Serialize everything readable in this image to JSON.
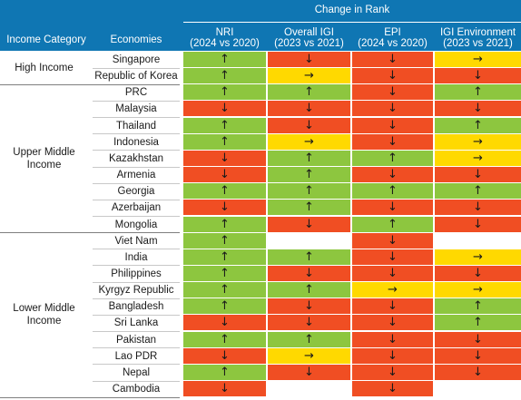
{
  "header": {
    "group_label": "Change in Rank",
    "col_category": "Income Category",
    "col_economies": "Economies",
    "metrics": [
      {
        "name": "NRI",
        "period": "(2024 vs 2020)"
      },
      {
        "name": "Overall IGI",
        "period": "(2023 vs 2021)"
      },
      {
        "name": "EPI",
        "period": "(2024 vs 2020)"
      },
      {
        "name": "IGI Environment",
        "period": "(2023 vs 2021)"
      }
    ]
  },
  "colors": {
    "header_bg": "#0f76b3",
    "improved": "#8dc63f",
    "declined": "#f04e23",
    "unchanged": "#ffd900",
    "no_data": "#ffffff"
  },
  "legend_symbols": {
    "up": "↑",
    "down": "↓",
    "same": "→"
  },
  "groups": [
    {
      "category": "High Income",
      "rows": [
        {
          "economy": "Singapore",
          "values": [
            "up",
            "down",
            "down",
            "same"
          ]
        },
        {
          "economy": "Republic of Korea",
          "values": [
            "up",
            "same",
            "down",
            "down"
          ]
        }
      ]
    },
    {
      "category": "Upper Middle Income",
      "rows": [
        {
          "economy": "PRC",
          "values": [
            "up",
            "up",
            "down",
            "up"
          ]
        },
        {
          "economy": "Malaysia",
          "values": [
            "down",
            "down",
            "down",
            "down"
          ]
        },
        {
          "economy": "Thailand",
          "values": [
            "up",
            "down",
            "down",
            "up"
          ]
        },
        {
          "economy": "Indonesia",
          "values": [
            "up",
            "same",
            "down",
            "same"
          ]
        },
        {
          "economy": "Kazakhstan",
          "values": [
            "down",
            "up",
            "up",
            "same"
          ]
        },
        {
          "economy": "Armenia",
          "values": [
            "down",
            "up",
            "down",
            "down"
          ]
        },
        {
          "economy": "Georgia",
          "values": [
            "up",
            "up",
            "up",
            "up"
          ]
        },
        {
          "economy": "Azerbaijan",
          "values": [
            "down",
            "up",
            "down",
            "down"
          ]
        },
        {
          "economy": "Mongolia",
          "values": [
            "up",
            "down",
            "up",
            "down"
          ]
        }
      ]
    },
    {
      "category": "Lower Middle Income",
      "rows": [
        {
          "economy": "Viet Nam",
          "values": [
            "up",
            null,
            "down",
            null
          ]
        },
        {
          "economy": "India",
          "values": [
            "up",
            "up",
            "down",
            "same"
          ]
        },
        {
          "economy": "Philippines",
          "values": [
            "up",
            "down",
            "down",
            "down"
          ]
        },
        {
          "economy": "Kyrgyz Republic",
          "values": [
            "up",
            "up",
            "same",
            "same"
          ]
        },
        {
          "economy": "Bangladesh",
          "values": [
            "up",
            "down",
            "down",
            "up"
          ]
        },
        {
          "economy": "Sri Lanka",
          "values": [
            "down",
            "down",
            "down",
            "up"
          ]
        },
        {
          "economy": "Pakistan",
          "values": [
            "up",
            "up",
            "down",
            "down"
          ]
        },
        {
          "economy": "Lao PDR",
          "values": [
            "down",
            "same",
            "down",
            "down"
          ]
        },
        {
          "economy": "Nepal",
          "values": [
            "up",
            "down",
            "down",
            "down"
          ]
        },
        {
          "economy": "Cambodia",
          "values": [
            "down",
            null,
            "down",
            null
          ]
        }
      ]
    }
  ]
}
